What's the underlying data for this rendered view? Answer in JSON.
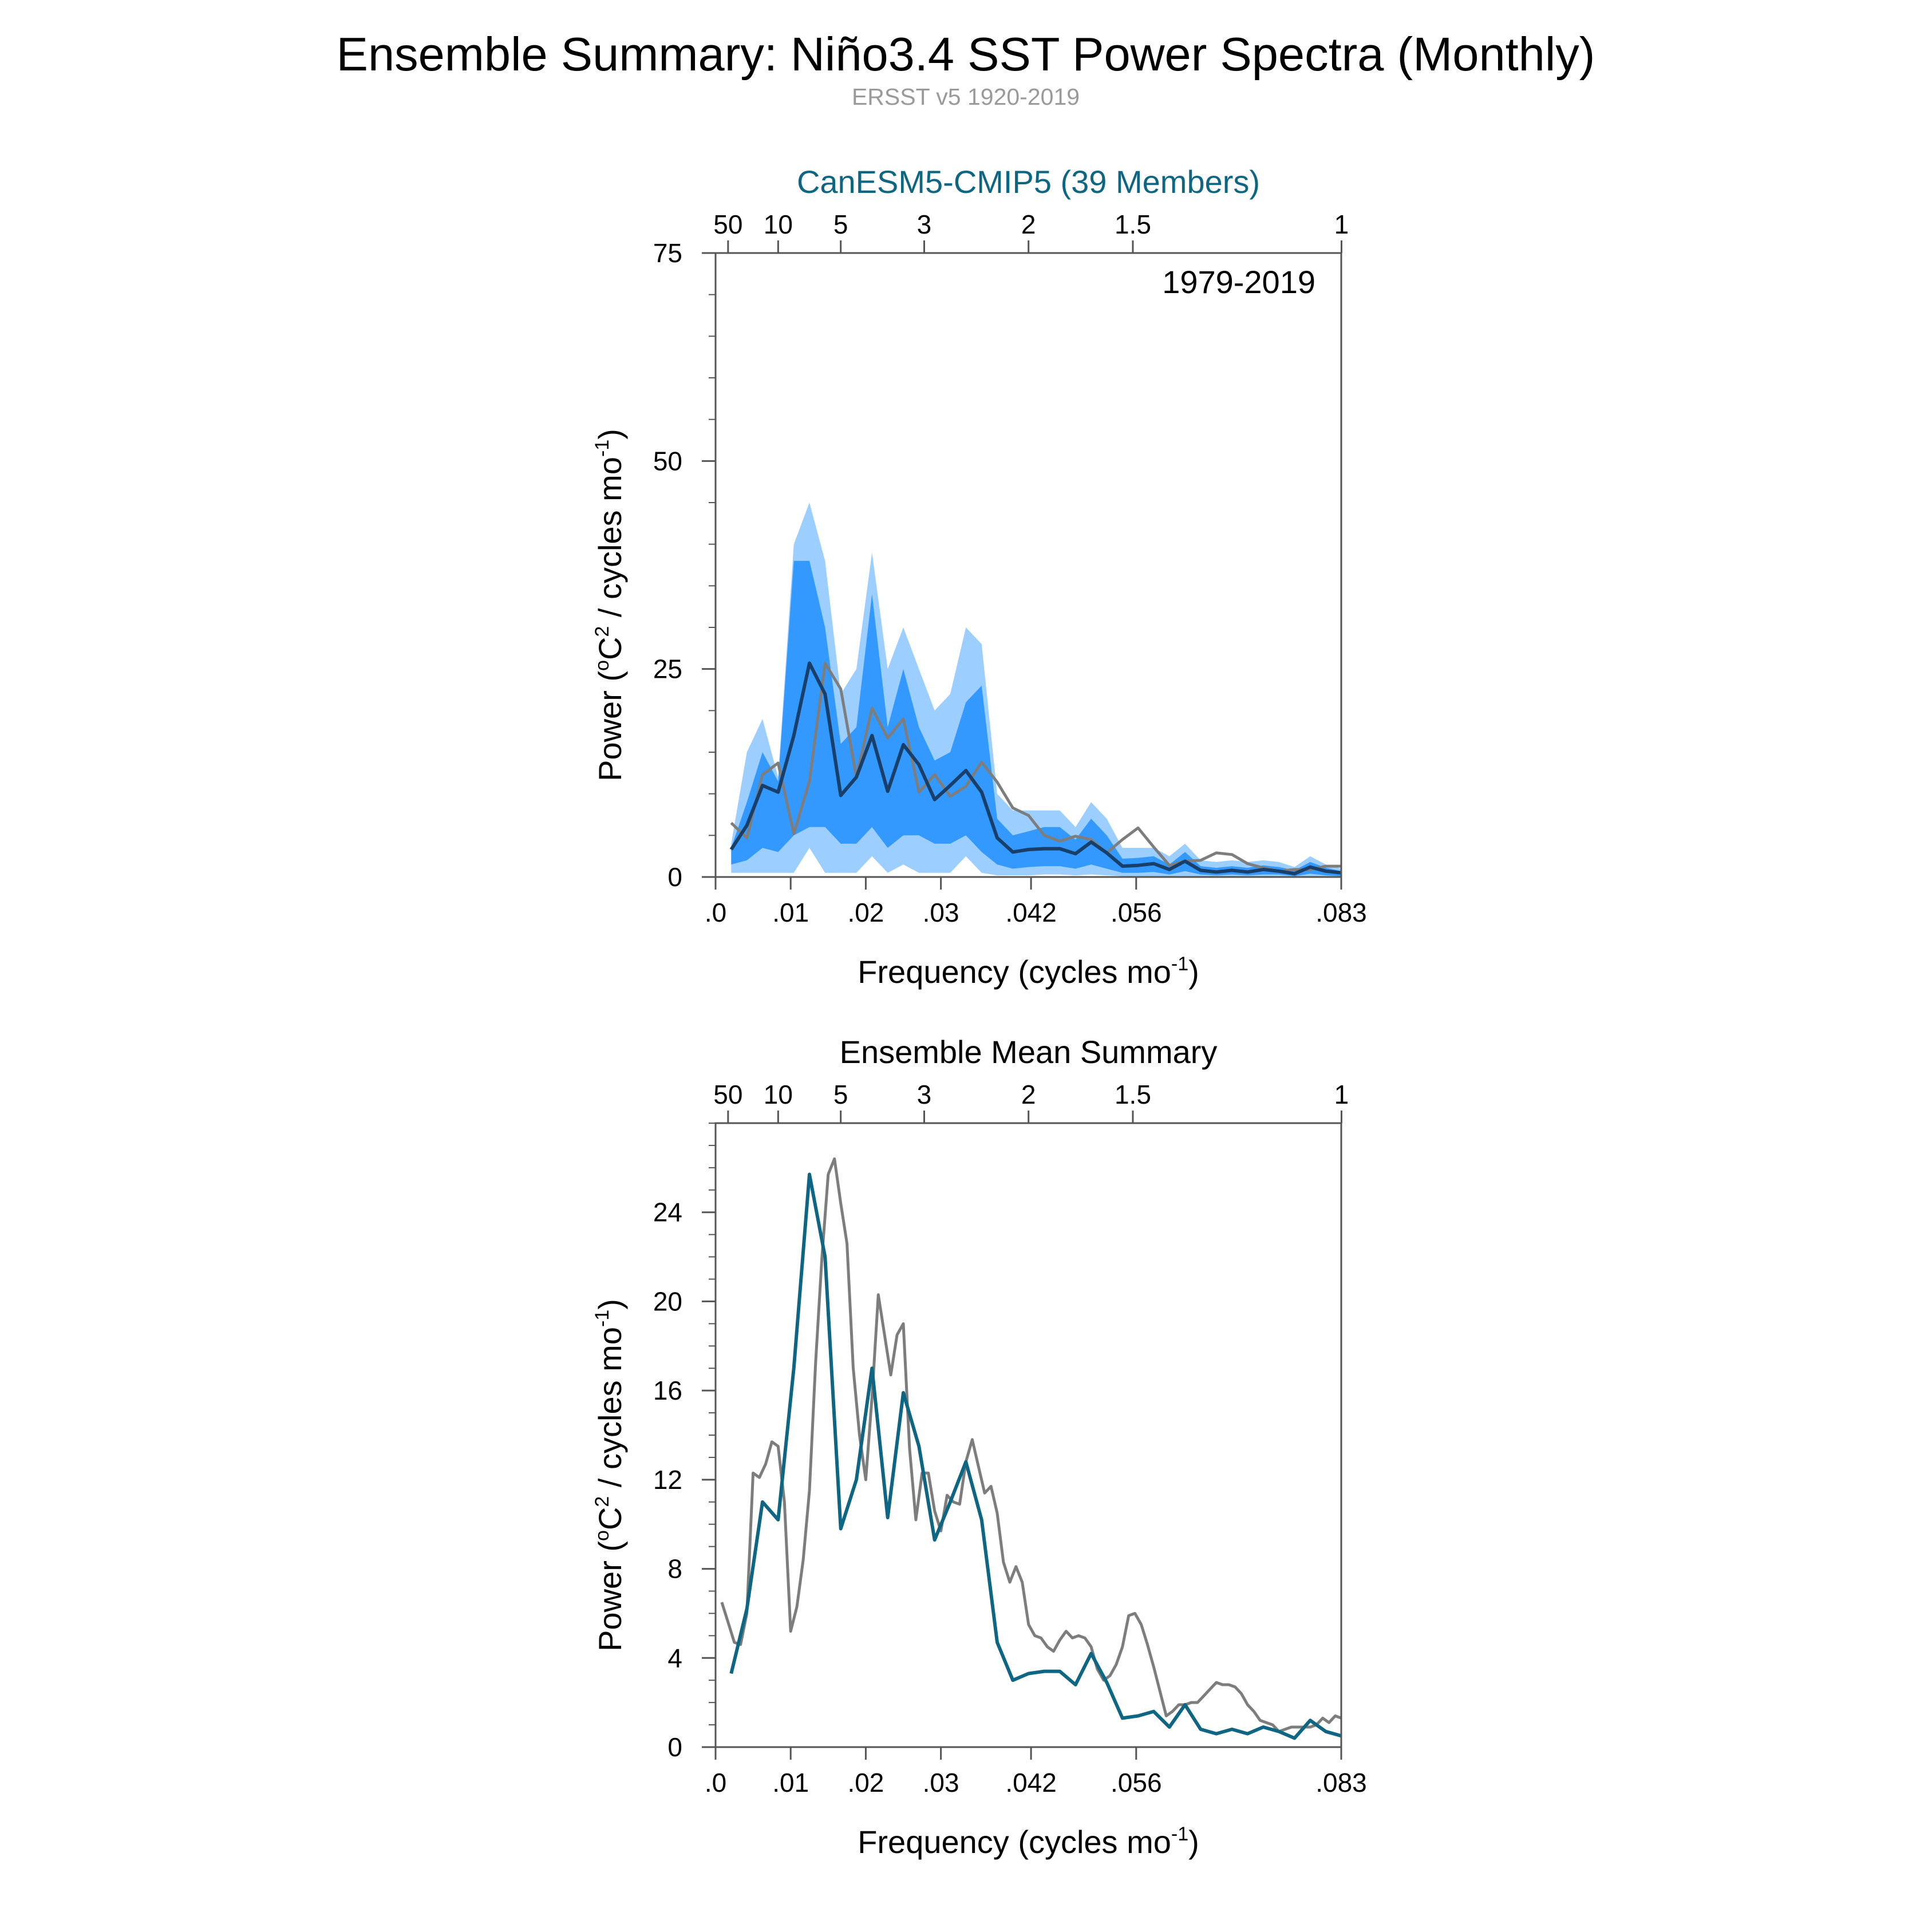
{
  "page": {
    "title": "Ensemble Summary: Niño3.4 SST Power Spectra (Monthly)",
    "subtitle": "ERSST v5 1920-2019"
  },
  "colors": {
    "model": "#0e6682",
    "model_dark": "#173f6a",
    "obs": "#7d7d7d",
    "band_outer": "#9ccfff",
    "band_inner": "#3399ff",
    "frame": "#555555",
    "subtitle": "#9a9a9a"
  },
  "chart_data": [
    {
      "type": "area",
      "title": "CanESM5-CMIP5 (39 Members)",
      "title_color": "#0e6682",
      "period_label": "1979-2019",
      "xlabel": "Frequency (cycles mo-1)",
      "ylabel": "Power (oC2 / cycles mo-1)",
      "xlim": [
        0,
        0.0833
      ],
      "ylim": [
        0,
        75
      ],
      "yticks": [
        0,
        25,
        50,
        75
      ],
      "yticks_labels": [
        "0",
        "25",
        "50",
        "75"
      ],
      "yminor_step": 5,
      "xticks": [
        0.0,
        0.01,
        0.02,
        0.03,
        0.042,
        0.056,
        0.0833
      ],
      "xtick_labels": [
        ".0",
        ".01",
        ".02",
        ".03",
        ".042",
        ".056",
        ".083"
      ],
      "top_axis_period_labels": [
        "50",
        "10",
        "5",
        "3",
        "2",
        "1.5",
        "1"
      ],
      "top_axis_periods_years": [
        50,
        10,
        5,
        3,
        2,
        1.5,
        1
      ],
      "x": [
        0.00208,
        0.00417,
        0.00625,
        0.00833,
        0.01042,
        0.0125,
        0.01458,
        0.01667,
        0.01875,
        0.02083,
        0.02292,
        0.025,
        0.02708,
        0.02917,
        0.03125,
        0.03333,
        0.03542,
        0.0375,
        0.03958,
        0.04167,
        0.04375,
        0.04583,
        0.04792,
        0.05,
        0.05208,
        0.05417,
        0.05625,
        0.05833,
        0.06042,
        0.0625,
        0.06458,
        0.06667,
        0.06875,
        0.07083,
        0.07292,
        0.075,
        0.07708,
        0.07917,
        0.08125,
        0.08333
      ],
      "series": [
        {
          "name": "ensemble-mean",
          "color": "#173f6a",
          "values": [
            3.3,
            6.2,
            11.0,
            10.2,
            17.0,
            25.7,
            22.0,
            9.8,
            12.0,
            17.0,
            10.3,
            15.9,
            13.5,
            9.3,
            11.0,
            12.8,
            10.2,
            4.7,
            3.0,
            3.3,
            3.4,
            3.4,
            2.8,
            4.2,
            2.9,
            1.3,
            1.4,
            1.6,
            0.9,
            1.9,
            0.8,
            0.6,
            0.8,
            0.6,
            0.9,
            0.7,
            0.4,
            1.2,
            0.7,
            0.5
          ]
        },
        {
          "name": "band-outer-upper",
          "values": [
            4.0,
            15.0,
            19.0,
            12.0,
            40.0,
            45.0,
            38.0,
            22.0,
            25.0,
            39.0,
            25.0,
            30.0,
            25.0,
            20.0,
            22.0,
            30.0,
            28.0,
            10.0,
            8.0,
            8.0,
            8.0,
            8.0,
            6.0,
            9.0,
            7.0,
            3.5,
            3.5,
            3.5,
            2.5,
            4.0,
            2.0,
            1.8,
            2.0,
            1.8,
            2.0,
            1.8,
            1.2,
            2.5,
            1.5,
            1.0
          ]
        },
        {
          "name": "band-inner-upper",
          "values": [
            3.5,
            9.0,
            15.0,
            11.5,
            38.0,
            38.0,
            30.0,
            16.0,
            18.0,
            34.0,
            18.0,
            25.0,
            18.0,
            14.0,
            15.0,
            21.0,
            23.0,
            7.0,
            5.0,
            5.5,
            6.0,
            6.0,
            4.5,
            7.0,
            5.0,
            2.2,
            2.3,
            2.5,
            1.5,
            3.0,
            1.3,
            1.1,
            1.3,
            1.1,
            1.4,
            1.2,
            0.8,
            1.8,
            1.1,
            0.7
          ]
        },
        {
          "name": "band-inner-lower",
          "values": [
            1.5,
            2.0,
            3.5,
            3.0,
            5.0,
            6.0,
            6.0,
            4.0,
            4.0,
            6.0,
            3.5,
            5.0,
            5.0,
            4.0,
            4.0,
            5.0,
            3.0,
            1.5,
            1.0,
            1.2,
            1.3,
            1.3,
            1.0,
            1.5,
            1.0,
            0.5,
            0.5,
            0.6,
            0.3,
            0.7,
            0.3,
            0.2,
            0.3,
            0.2,
            0.3,
            0.3,
            0.1,
            0.4,
            0.2,
            0.1
          ]
        },
        {
          "name": "band-outer-lower",
          "values": [
            0.5,
            0.5,
            0.5,
            0.5,
            0.5,
            3.5,
            0.5,
            0.5,
            0.5,
            2.5,
            0.5,
            1.5,
            0.5,
            0.5,
            0.5,
            2.5,
            0.5,
            0.2,
            0.2,
            0.2,
            0.3,
            0.3,
            0.2,
            0.3,
            0.2,
            0.1,
            0.1,
            0.1,
            0.1,
            0.1,
            0.1,
            0.0,
            0.1,
            0.0,
            0.1,
            0.1,
            0.0,
            0.1,
            0.0,
            0.0
          ]
        },
        {
          "name": "ERSST v5",
          "color": "#7d7d7d",
          "values": [
            6.5,
            4.7,
            12.3,
            13.7,
            5.2,
            11.5,
            25.7,
            22.6,
            12.0,
            20.3,
            16.7,
            19.0,
            10.2,
            12.3,
            9.7,
            10.9,
            13.8,
            11.4,
            8.3,
            7.4,
            5.0,
            4.3,
            4.9,
            4.5,
            2.9,
            4.5,
            5.9,
            3.6,
            1.4,
            1.9,
            2.0,
            2.9,
            2.7,
            1.6,
            1.1,
            0.7,
            0.9,
            0.9,
            1.3,
            1.3
          ]
        }
      ]
    },
    {
      "type": "line",
      "title": "Ensemble Mean Summary",
      "title_color": "#000000",
      "xlabel": "Frequency (cycles mo-1)",
      "ylabel": "Power (oC2 / cycles mo-1)",
      "xlim": [
        0,
        0.0833
      ],
      "ylim": [
        0,
        28
      ],
      "yticks": [
        0,
        4,
        8,
        12,
        16,
        20,
        24
      ],
      "yticks_labels": [
        "0",
        "4",
        "8",
        "12",
        "16",
        "20",
        "24"
      ],
      "yminor_step": 1,
      "xticks": [
        0.0,
        0.01,
        0.02,
        0.03,
        0.042,
        0.056,
        0.0833
      ],
      "xtick_labels": [
        ".0",
        ".01",
        ".02",
        ".03",
        ".042",
        ".056",
        ".083"
      ],
      "top_axis_period_labels": [
        "50",
        "10",
        "5",
        "3",
        "2",
        "1.5",
        "1"
      ],
      "top_axis_periods_years": [
        50,
        10,
        5,
        3,
        2,
        1.5,
        1
      ],
      "series": [
        {
          "name": "CanESM5-CMIP5",
          "color": "#0e6682",
          "x": [
            0.00208,
            0.00417,
            0.00625,
            0.00833,
            0.01042,
            0.0125,
            0.01458,
            0.01667,
            0.01875,
            0.02083,
            0.02292,
            0.025,
            0.02708,
            0.02917,
            0.03125,
            0.03333,
            0.03542,
            0.0375,
            0.03958,
            0.04167,
            0.04375,
            0.04583,
            0.04792,
            0.05,
            0.05208,
            0.05417,
            0.05625,
            0.05833,
            0.06042,
            0.0625,
            0.06458,
            0.06667,
            0.06875,
            0.07083,
            0.07292,
            0.075,
            0.07708,
            0.07917,
            0.08125,
            0.08333
          ],
          "values": [
            3.3,
            6.2,
            11.0,
            10.2,
            17.0,
            25.7,
            22.0,
            9.8,
            12.0,
            17.0,
            10.3,
            15.9,
            13.5,
            9.3,
            11.0,
            12.8,
            10.2,
            4.7,
            3.0,
            3.3,
            3.4,
            3.4,
            2.8,
            4.2,
            2.9,
            1.3,
            1.4,
            1.6,
            0.9,
            1.9,
            0.8,
            0.6,
            0.8,
            0.6,
            0.9,
            0.7,
            0.4,
            1.2,
            0.7,
            0.5
          ]
        },
        {
          "name": "ERSST v5",
          "color": "#7d7d7d",
          "x": [
            0.00083,
            0.00167,
            0.0025,
            0.00333,
            0.00417,
            0.005,
            0.00583,
            0.00667,
            0.0075,
            0.00833,
            0.00917,
            0.01,
            0.01083,
            0.01167,
            0.0125,
            0.01333,
            0.01417,
            0.015,
            0.01583,
            0.01667,
            0.0175,
            0.01833,
            0.01917,
            0.02,
            0.02083,
            0.02167,
            0.0225,
            0.02333,
            0.02417,
            0.025,
            0.02583,
            0.02667,
            0.0275,
            0.02833,
            0.02917,
            0.03,
            0.03083,
            0.03167,
            0.0325,
            0.03333,
            0.03417,
            0.035,
            0.03583,
            0.03667,
            0.0375,
            0.03833,
            0.03917,
            0.04,
            0.04083,
            0.04167,
            0.0425,
            0.04333,
            0.04417,
            0.045,
            0.04583,
            0.04667,
            0.0475,
            0.04833,
            0.04917,
            0.05,
            0.05083,
            0.05167,
            0.0525,
            0.05333,
            0.05417,
            0.055,
            0.05583,
            0.05667,
            0.0575,
            0.05833,
            0.05917,
            0.06,
            0.06083,
            0.06167,
            0.0625,
            0.06333,
            0.06417,
            0.065,
            0.06583,
            0.06667,
            0.0675,
            0.06833,
            0.06917,
            0.07,
            0.07083,
            0.07167,
            0.0725,
            0.07333,
            0.07417,
            0.075,
            0.07583,
            0.07667,
            0.0775,
            0.07833,
            0.07917,
            0.08,
            0.08083,
            0.08167,
            0.0825,
            0.08333
          ],
          "values": [
            6.5,
            5.6,
            4.7,
            4.6,
            6.0,
            12.3,
            12.1,
            12.7,
            13.7,
            13.5,
            11.0,
            5.2,
            6.3,
            8.4,
            11.5,
            17.3,
            22.0,
            25.7,
            26.4,
            24.4,
            22.6,
            17.0,
            14.0,
            12.0,
            15.7,
            20.3,
            18.5,
            16.7,
            18.5,
            19.0,
            13.4,
            10.2,
            12.3,
            12.3,
            10.6,
            9.7,
            11.3,
            11.0,
            10.9,
            12.8,
            13.8,
            12.6,
            11.4,
            11.7,
            10.5,
            8.3,
            7.4,
            8.1,
            7.4,
            5.5,
            5.0,
            4.9,
            4.5,
            4.3,
            4.8,
            5.2,
            4.9,
            5.0,
            4.9,
            4.5,
            3.5,
            3.0,
            3.2,
            3.7,
            4.5,
            5.9,
            6.0,
            5.5,
            4.6,
            3.6,
            2.5,
            1.4,
            1.6,
            1.9,
            1.9,
            2.0,
            2.0,
            2.3,
            2.6,
            2.9,
            2.8,
            2.8,
            2.7,
            2.4,
            1.9,
            1.6,
            1.2,
            1.1,
            1.0,
            0.7,
            0.8,
            0.9,
            0.9,
            0.9,
            0.9,
            1.0,
            1.3,
            1.1,
            1.4,
            1.3
          ]
        }
      ]
    }
  ]
}
